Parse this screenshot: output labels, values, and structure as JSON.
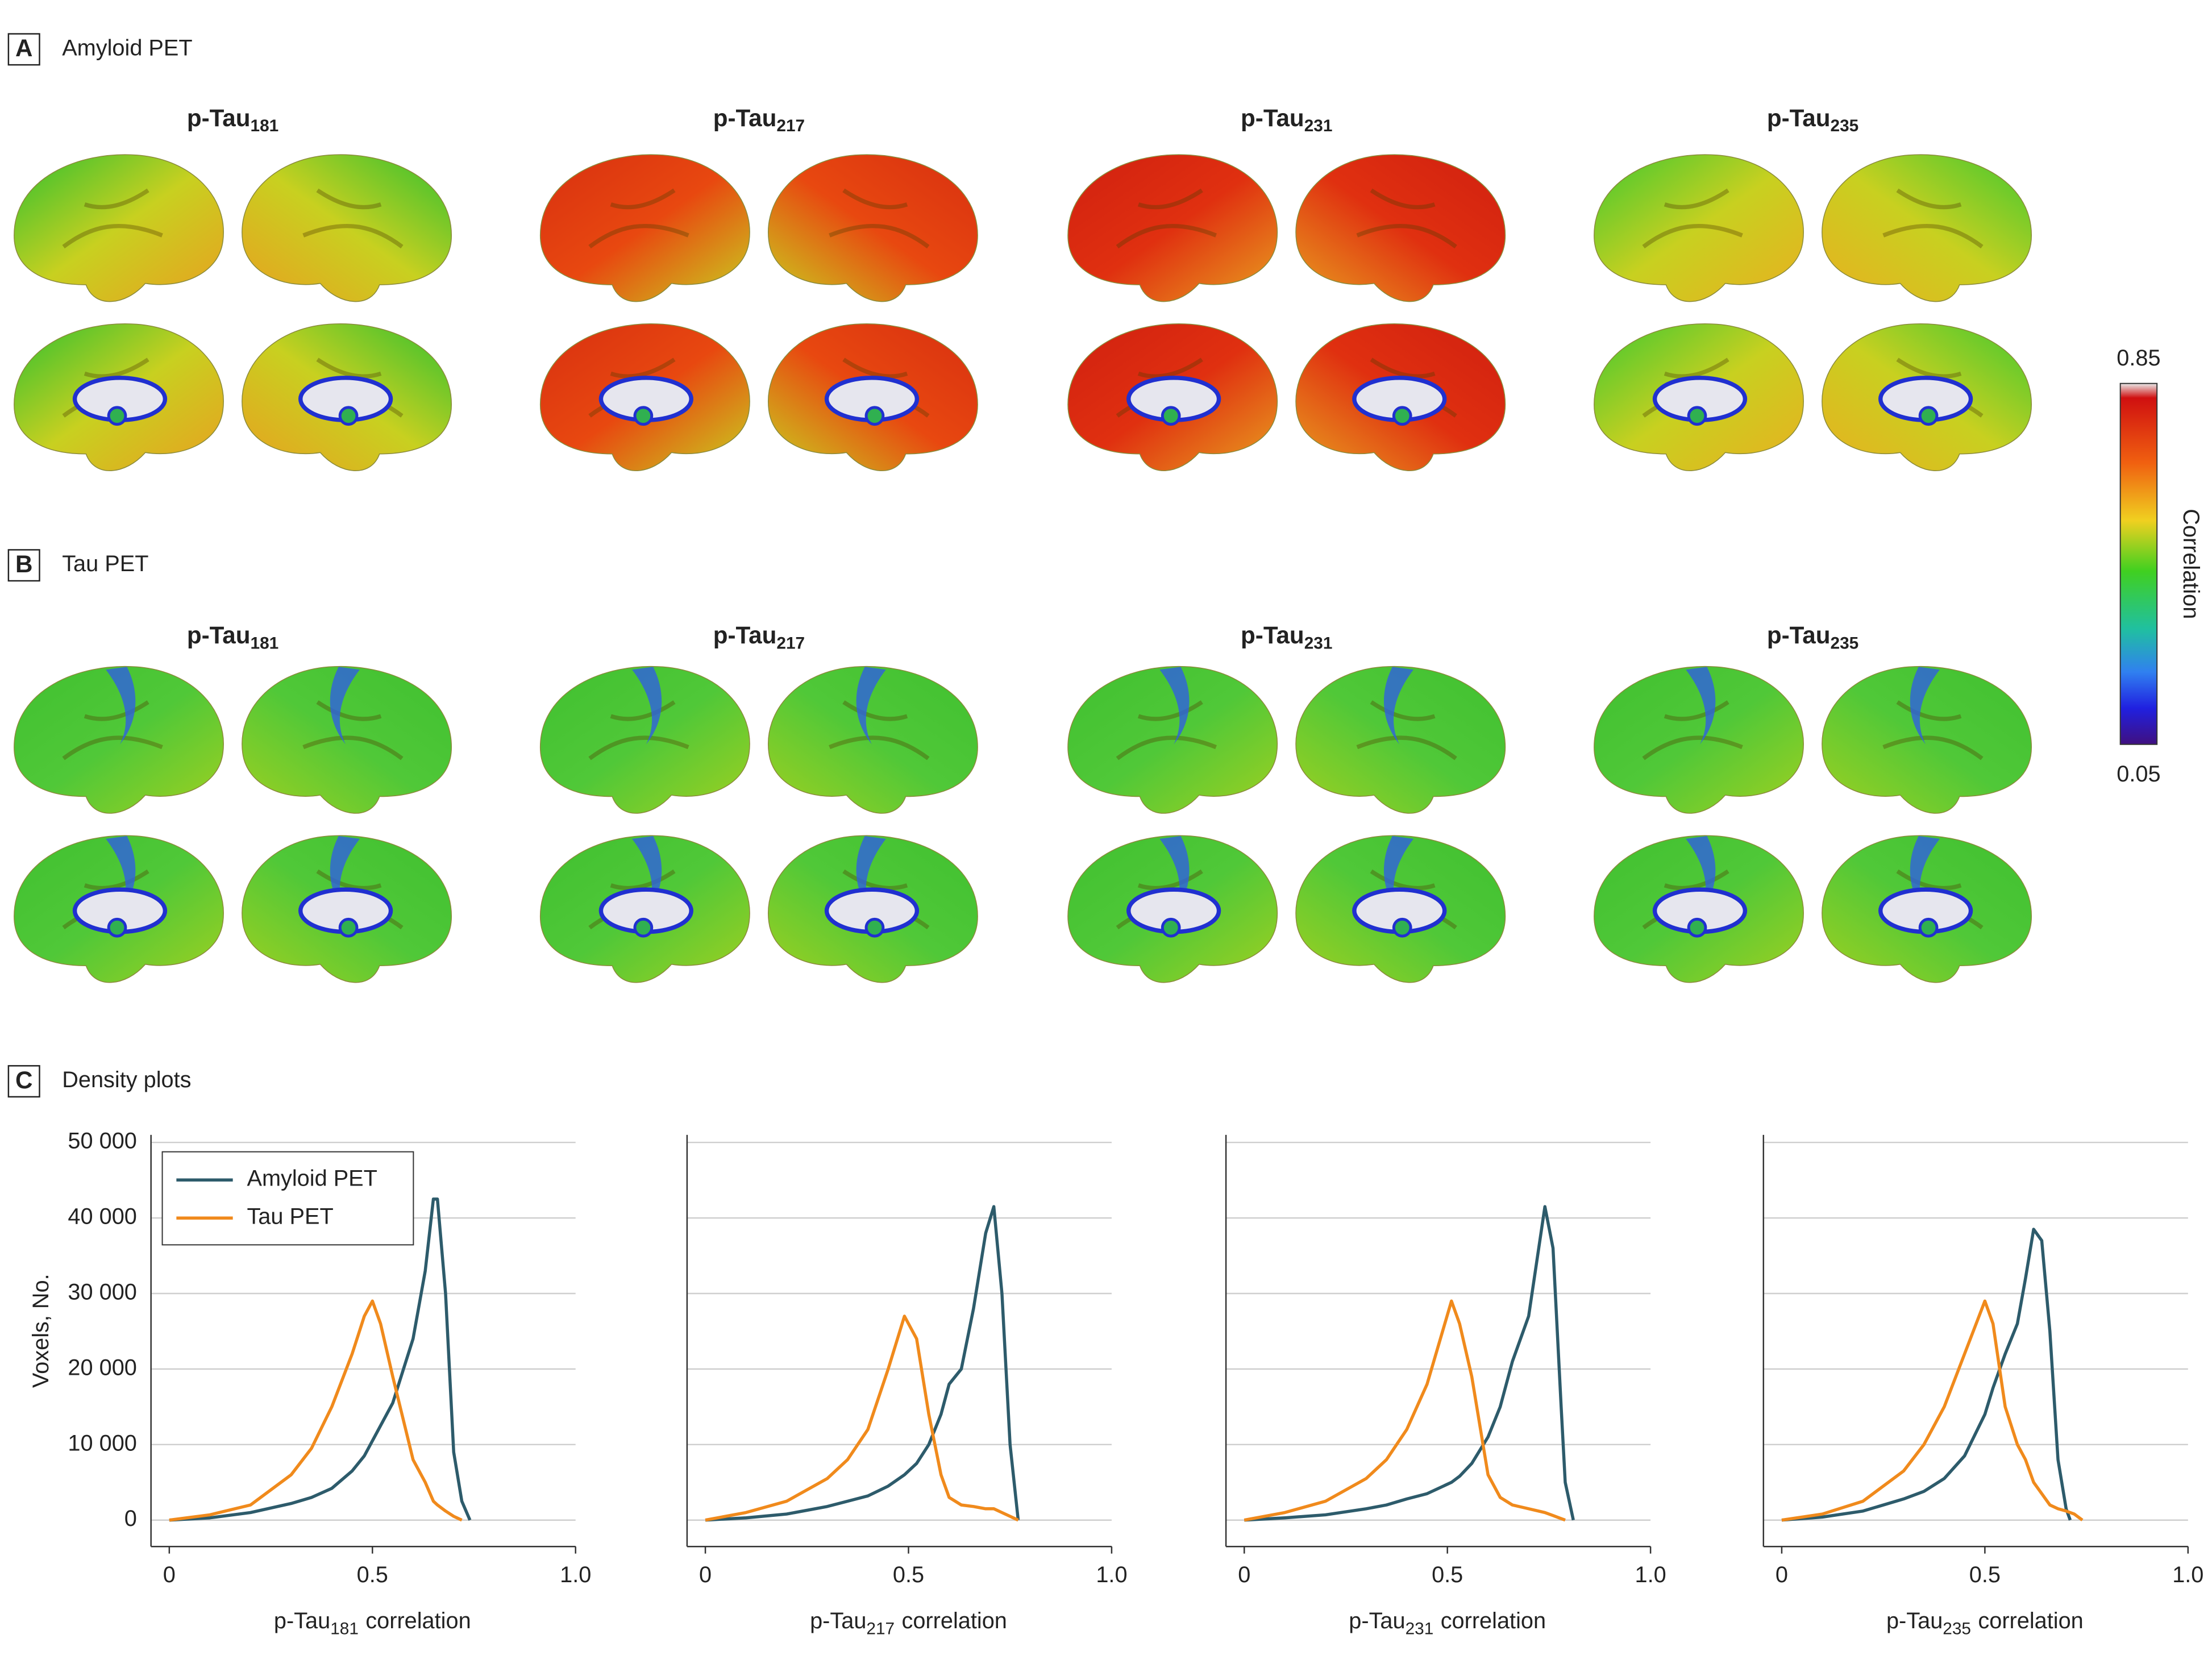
{
  "panel_a": {
    "letter": "A",
    "title": "Amyloid PET",
    "maps": [
      {
        "text": "p-Tau",
        "subscript": "181"
      },
      {
        "text": "p-Tau",
        "subscript": "217"
      },
      {
        "text": "p-Tau",
        "subscript": "231"
      },
      {
        "text": "p-Tau",
        "subscript": "235"
      }
    ]
  },
  "panel_b": {
    "letter": "B",
    "title": "Tau PET",
    "maps": [
      {
        "text": "p-Tau",
        "subscript": "181"
      },
      {
        "text": "p-Tau",
        "subscript": "217"
      },
      {
        "text": "p-Tau",
        "subscript": "231"
      },
      {
        "text": "p-Tau",
        "subscript": "235"
      }
    ]
  },
  "panel_c": {
    "letter": "C",
    "title": "Density plots"
  },
  "colorbar": {
    "label": "Correlation",
    "max": 0.85,
    "min": 0.05
  },
  "chart_data": [
    {
      "type": "line",
      "ylabel": "Voxels, No.",
      "xlabel": {
        "text": "p-Tau",
        "subscript": "181",
        "suffix": "correlation"
      },
      "legend": "upper left",
      "x": [
        0,
        0.1,
        0.2,
        0.3,
        0.35,
        0.4,
        0.45,
        0.48,
        0.5,
        0.52,
        0.55,
        0.6,
        0.63,
        0.65,
        0.66,
        0.68,
        0.7,
        0.72,
        0.74
      ],
      "series": [
        {
          "name": "Amyloid PET",
          "color": "#2d5b6b",
          "values": [
            0,
            300,
            1000,
            2200,
            3000,
            4200,
            6500,
            8500,
            10500,
            12500,
            15500,
            24000,
            33000,
            42500,
            42500,
            30000,
            9000,
            2500,
            0
          ]
        },
        {
          "name": "Tau PET",
          "color": "#f08a1c",
          "values": [
            0,
            700,
            2000,
            6000,
            9500,
            15000,
            22000,
            27000,
            29000,
            26000,
            19000,
            8000,
            5000,
            2500,
            2000,
            1200,
            500,
            0,
            null
          ]
        }
      ],
      "xlim": [
        -0.045,
        1.0
      ],
      "xticks": [
        0,
        0.5,
        {
          "value": 1,
          "label": "1.0"
        }
      ],
      "ylim": [
        -3500,
        51000
      ],
      "yticks": [
        0,
        {
          "value": 10000,
          "label": "10 000"
        },
        {
          "value": 20000,
          "label": "20 000"
        },
        {
          "value": 30000,
          "label": "30 000"
        },
        {
          "value": 40000,
          "label": "40 000"
        },
        {
          "value": 50000,
          "label": "50 000"
        }
      ],
      "grid": true
    },
    {
      "type": "line",
      "xlabel": {
        "text": "p-Tau",
        "subscript": "217",
        "suffix": "correlation"
      },
      "x": [
        0,
        0.1,
        0.2,
        0.3,
        0.35,
        0.4,
        0.45,
        0.49,
        0.52,
        0.55,
        0.58,
        0.6,
        0.63,
        0.66,
        0.69,
        0.71,
        0.73,
        0.75,
        0.77
      ],
      "series": [
        {
          "color": "#2d5b6b",
          "values": [
            0,
            300,
            800,
            1800,
            2500,
            3200,
            4500,
            6000,
            7500,
            10000,
            14000,
            18000,
            20000,
            28000,
            38000,
            41500,
            30000,
            10000,
            0
          ]
        },
        {
          "color": "#f08a1c",
          "values": [
            0,
            1000,
            2500,
            5500,
            8000,
            12000,
            20000,
            27000,
            24000,
            14000,
            6000,
            3000,
            2000,
            1800,
            1500,
            1500,
            1000,
            500,
            0
          ]
        }
      ],
      "xlim": [
        -0.045,
        1.0
      ],
      "xticks": [
        0,
        0.5,
        {
          "value": 1,
          "label": "1.0"
        }
      ],
      "ylim": [
        -3500,
        51000
      ],
      "yticks": [
        0,
        10000,
        20000,
        30000,
        40000,
        50000
      ],
      "grid": true
    },
    {
      "type": "line",
      "xlabel": {
        "text": "p-Tau",
        "subscript": "231",
        "suffix": "correlation"
      },
      "x": [
        0,
        0.1,
        0.2,
        0.3,
        0.35,
        0.4,
        0.45,
        0.51,
        0.53,
        0.56,
        0.6,
        0.63,
        0.66,
        0.7,
        0.74,
        0.76,
        0.78,
        0.79,
        0.81
      ],
      "series": [
        {
          "color": "#2d5b6b",
          "values": [
            0,
            300,
            700,
            1500,
            2000,
            2800,
            3500,
            5000,
            5800,
            7500,
            11000,
            15000,
            21000,
            27000,
            41500,
            36000,
            15000,
            5000,
            0
          ]
        },
        {
          "color": "#f08a1c",
          "values": [
            0,
            1000,
            2500,
            5500,
            8000,
            12000,
            18000,
            29000,
            26000,
            19000,
            6000,
            3000,
            2000,
            1500,
            1000,
            600,
            200,
            0,
            null
          ]
        }
      ],
      "xlim": [
        -0.045,
        1.0
      ],
      "xticks": [
        0,
        0.5,
        {
          "value": 1,
          "label": "1.0"
        }
      ],
      "ylim": [
        -3500,
        51000
      ],
      "yticks": [
        0,
        10000,
        20000,
        30000,
        40000,
        50000
      ],
      "grid": true
    },
    {
      "type": "line",
      "xlabel": {
        "text": "p-Tau",
        "subscript": "235",
        "suffix": "correlation"
      },
      "x": [
        0,
        0.1,
        0.2,
        0.3,
        0.35,
        0.4,
        0.45,
        0.5,
        0.52,
        0.55,
        0.58,
        0.6,
        0.62,
        0.64,
        0.66,
        0.68,
        0.7,
        0.71,
        0.72,
        0.74
      ],
      "series": [
        {
          "color": "#2d5b6b",
          "values": [
            0,
            400,
            1200,
            2800,
            3800,
            5500,
            8500,
            14000,
            17500,
            22000,
            26000,
            32000,
            38500,
            37000,
            25000,
            8000,
            1500,
            0,
            null,
            null
          ]
        },
        {
          "color": "#f08a1c",
          "values": [
            0,
            800,
            2500,
            6500,
            10000,
            15000,
            22000,
            29000,
            26000,
            15000,
            10000,
            8000,
            5000,
            3500,
            2000,
            1500,
            1200,
            1000,
            800,
            0
          ]
        }
      ],
      "xlim": [
        -0.045,
        1.0
      ],
      "xticks": [
        0,
        0.5,
        {
          "value": 1,
          "label": "1.0"
        }
      ],
      "ylim": [
        -3500,
        51000
      ],
      "yticks": [
        0,
        10000,
        20000,
        30000,
        40000,
        50000
      ],
      "grid": true
    }
  ]
}
